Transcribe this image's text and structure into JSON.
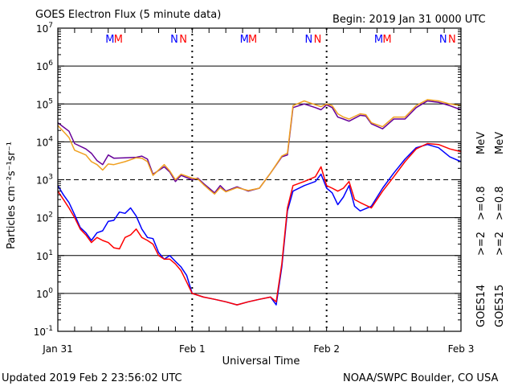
{
  "header": {
    "title": "GOES Electron Flux (5 minute data)",
    "begin": "Begin: 2019 Jan 31 0000 UTC"
  },
  "footer": {
    "updated": "Updated 2019 Feb  2 23:56:02 UTC",
    "source": "NOAA/SWPC Boulder, CO USA"
  },
  "chart_data": {
    "type": "line",
    "title": "GOES Electron Flux (5 minute data)",
    "xlabel": "Universal Time",
    "ylabel": "Particles cm⁻²s⁻¹sr⁻¹",
    "y_scale": "log",
    "ylim": [
      0.1,
      10000000
    ],
    "y_ticks": [
      {
        "base": "10",
        "exp": "-1"
      },
      {
        "base": "10",
        "exp": "0"
      },
      {
        "base": "10",
        "exp": "1"
      },
      {
        "base": "10",
        "exp": "2"
      },
      {
        "base": "10",
        "exp": "3"
      },
      {
        "base": "10",
        "exp": "4"
      },
      {
        "base": "10",
        "exp": "5"
      },
      {
        "base": "10",
        "exp": "6"
      },
      {
        "base": "10",
        "exp": "7"
      }
    ],
    "xlim_hours": [
      0,
      72
    ],
    "x_ticks": [
      {
        "label": "Jan 31",
        "hour": 0
      },
      {
        "label": "Feb 1",
        "hour": 24
      },
      {
        "label": "Feb 2",
        "hour": 48
      },
      {
        "label": "Feb 3",
        "hour": 72
      }
    ],
    "markers": [
      {
        "text": "M",
        "hour": 9.3,
        "color": "#0000ff"
      },
      {
        "text": "M",
        "hour": 10.8,
        "color": "#ff0000"
      },
      {
        "text": "N",
        "hour": 20.8,
        "color": "#0000ff"
      },
      {
        "text": "N",
        "hour": 22.4,
        "color": "#ff0000"
      },
      {
        "text": "M",
        "hour": 33.3,
        "color": "#0000ff"
      },
      {
        "text": "M",
        "hour": 34.8,
        "color": "#ff0000"
      },
      {
        "text": "N",
        "hour": 44.8,
        "color": "#0000ff"
      },
      {
        "text": "N",
        "hour": 46.4,
        "color": "#ff0000"
      },
      {
        "text": "M",
        "hour": 57.3,
        "color": "#0000ff"
      },
      {
        "text": "M",
        "hour": 58.8,
        "color": "#ff0000"
      },
      {
        "text": "N",
        "hour": 68.8,
        "color": "#0000ff"
      },
      {
        "text": "N",
        "hour": 70.4,
        "color": "#ff0000"
      }
    ],
    "legend": {
      "goes14": "GOES14",
      "goes15": "GOES15",
      "ge2": ">=2",
      "ge08": ">=0.8",
      "mev": "MeV"
    },
    "threshold_dashed": 1000,
    "series": [
      {
        "name": ">=0.8 MeV GOES14",
        "color": "#660099",
        "points": [
          [
            0,
            32000
          ],
          [
            2,
            19000
          ],
          [
            3,
            9000
          ],
          [
            5,
            6500
          ],
          [
            6,
            5000
          ],
          [
            7,
            3200
          ],
          [
            8,
            2500
          ],
          [
            9,
            4500
          ],
          [
            10,
            3700
          ],
          [
            12,
            3800
          ],
          [
            14,
            3900
          ],
          [
            15,
            4200
          ],
          [
            16,
            3500
          ],
          [
            17,
            1400
          ],
          [
            19,
            2200
          ],
          [
            20,
            1600
          ],
          [
            21,
            900
          ],
          [
            22,
            1300
          ],
          [
            24,
            1000
          ],
          [
            25,
            1100
          ],
          [
            26,
            800
          ],
          [
            27,
            600
          ],
          [
            28,
            450
          ],
          [
            29,
            700
          ],
          [
            30,
            500
          ],
          [
            32,
            650
          ],
          [
            34,
            500
          ],
          [
            36,
            600
          ],
          [
            38,
            1500
          ],
          [
            40,
            4000
          ],
          [
            41,
            4500
          ],
          [
            42,
            80000
          ],
          [
            44,
            100000
          ],
          [
            46,
            80000
          ],
          [
            47,
            70000
          ],
          [
            48,
            95000
          ],
          [
            49,
            80000
          ],
          [
            50,
            45000
          ],
          [
            51,
            40000
          ],
          [
            52,
            35000
          ],
          [
            54,
            50000
          ],
          [
            55,
            48000
          ],
          [
            56,
            30000
          ],
          [
            58,
            22000
          ],
          [
            60,
            40000
          ],
          [
            62,
            40000
          ],
          [
            64,
            80000
          ],
          [
            66,
            120000
          ],
          [
            68,
            110000
          ],
          [
            70,
            90000
          ],
          [
            72,
            70000
          ]
        ]
      },
      {
        "name": ">=0.8 MeV GOES15",
        "color": "#f0a020",
        "points": [
          [
            0,
            27000
          ],
          [
            2,
            13000
          ],
          [
            3,
            6000
          ],
          [
            5,
            4500
          ],
          [
            6,
            3000
          ],
          [
            7,
            2500
          ],
          [
            8,
            1800
          ],
          [
            9,
            2600
          ],
          [
            10,
            2500
          ],
          [
            12,
            3000
          ],
          [
            14,
            3800
          ],
          [
            15,
            3700
          ],
          [
            16,
            3000
          ],
          [
            17,
            1300
          ],
          [
            19,
            2500
          ],
          [
            20,
            1700
          ],
          [
            21,
            1000
          ],
          [
            22,
            1400
          ],
          [
            24,
            1100
          ],
          [
            25,
            1050
          ],
          [
            26,
            750
          ],
          [
            27,
            550
          ],
          [
            28,
            420
          ],
          [
            29,
            620
          ],
          [
            30,
            480
          ],
          [
            32,
            620
          ],
          [
            34,
            520
          ],
          [
            36,
            600
          ],
          [
            38,
            1500
          ],
          [
            40,
            4200
          ],
          [
            41,
            5000
          ],
          [
            42,
            90000
          ],
          [
            44,
            120000
          ],
          [
            46,
            95000
          ],
          [
            47,
            85000
          ],
          [
            48,
            100000
          ],
          [
            49,
            90000
          ],
          [
            50,
            55000
          ],
          [
            51,
            45000
          ],
          [
            52,
            40000
          ],
          [
            54,
            55000
          ],
          [
            55,
            52000
          ],
          [
            56,
            32000
          ],
          [
            58,
            25000
          ],
          [
            60,
            45000
          ],
          [
            62,
            45000
          ],
          [
            64,
            90000
          ],
          [
            66,
            130000
          ],
          [
            68,
            120000
          ],
          [
            70,
            100000
          ],
          [
            72,
            90000
          ]
        ]
      },
      {
        "name": ">=2 MeV GOES14",
        "color": "#0000ff",
        "points": [
          [
            0,
            700
          ],
          [
            1,
            400
          ],
          [
            2,
            250
          ],
          [
            3,
            120
          ],
          [
            4,
            55
          ],
          [
            5,
            40
          ],
          [
            6,
            25
          ],
          [
            7,
            40
          ],
          [
            8,
            45
          ],
          [
            9,
            80
          ],
          [
            10,
            85
          ],
          [
            11,
            140
          ],
          [
            12,
            130
          ],
          [
            13,
            180
          ],
          [
            14,
            110
          ],
          [
            15,
            50
          ],
          [
            16,
            30
          ],
          [
            17,
            28
          ],
          [
            18,
            12
          ],
          [
            19,
            8
          ],
          [
            20,
            10
          ],
          [
            21,
            7
          ],
          [
            22,
            5
          ],
          [
            23,
            3
          ],
          [
            24,
            1
          ],
          [
            26,
            0.8
          ],
          [
            28,
            0.7
          ],
          [
            30,
            0.6
          ],
          [
            32,
            0.5
          ],
          [
            34,
            0.6
          ],
          [
            36,
            0.7
          ],
          [
            38,
            0.8
          ],
          [
            39,
            0.5
          ],
          [
            40,
            5
          ],
          [
            41,
            150
          ],
          [
            42,
            500
          ],
          [
            44,
            700
          ],
          [
            46,
            900
          ],
          [
            47,
            1400
          ],
          [
            48,
            600
          ],
          [
            49,
            450
          ],
          [
            50,
            220
          ],
          [
            51,
            350
          ],
          [
            52,
            700
          ],
          [
            53,
            200
          ],
          [
            54,
            150
          ],
          [
            56,
            200
          ],
          [
            58,
            600
          ],
          [
            60,
            1500
          ],
          [
            62,
            3500
          ],
          [
            64,
            7000
          ],
          [
            66,
            8500
          ],
          [
            68,
            7000
          ],
          [
            70,
            4000
          ],
          [
            72,
            3000
          ]
        ]
      },
      {
        "name": ">=2 MeV GOES15",
        "color": "#ff0000",
        "points": [
          [
            0,
            500
          ],
          [
            1,
            300
          ],
          [
            2,
            180
          ],
          [
            3,
            100
          ],
          [
            4,
            50
          ],
          [
            5,
            35
          ],
          [
            6,
            22
          ],
          [
            7,
            30
          ],
          [
            8,
            25
          ],
          [
            9,
            22
          ],
          [
            10,
            16
          ],
          [
            11,
            15
          ],
          [
            12,
            30
          ],
          [
            13,
            35
          ],
          [
            14,
            50
          ],
          [
            15,
            30
          ],
          [
            16,
            25
          ],
          [
            17,
            20
          ],
          [
            18,
            10
          ],
          [
            19,
            8
          ],
          [
            20,
            8
          ],
          [
            21,
            6
          ],
          [
            22,
            4
          ],
          [
            23,
            2
          ],
          [
            24,
            1
          ],
          [
            26,
            0.8
          ],
          [
            28,
            0.7
          ],
          [
            30,
            0.6
          ],
          [
            32,
            0.5
          ],
          [
            34,
            0.6
          ],
          [
            36,
            0.7
          ],
          [
            38,
            0.8
          ],
          [
            39,
            0.6
          ],
          [
            40,
            6
          ],
          [
            41,
            180
          ],
          [
            42,
            700
          ],
          [
            44,
            900
          ],
          [
            46,
            1200
          ],
          [
            47,
            2200
          ],
          [
            48,
            700
          ],
          [
            49,
            600
          ],
          [
            50,
            500
          ],
          [
            51,
            600
          ],
          [
            52,
            900
          ],
          [
            53,
            300
          ],
          [
            54,
            250
          ],
          [
            56,
            180
          ],
          [
            58,
            500
          ],
          [
            60,
            1200
          ],
          [
            62,
            3000
          ],
          [
            64,
            6500
          ],
          [
            66,
            9000
          ],
          [
            68,
            8500
          ],
          [
            70,
            6500
          ],
          [
            72,
            5500
          ]
        ]
      }
    ]
  }
}
